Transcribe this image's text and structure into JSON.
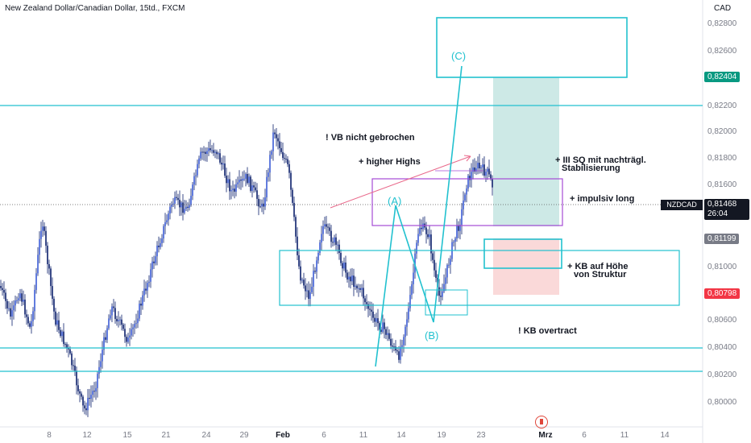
{
  "header": {
    "title": "New Zealand Dollar/Canadian Dollar, 15td., FXCM",
    "currency": "CAD"
  },
  "symbol": {
    "ticker": "NZDCAD",
    "last_price": "0,81468",
    "countdown": "26:04"
  },
  "price_axis": {
    "ticks": [
      "0,82800",
      "0,82600",
      "0,82200",
      "0,82000",
      "0,81800",
      "0,81600",
      "0,81000",
      "0,80600",
      "0,80400",
      "0,80200",
      "0,80000"
    ],
    "badges": [
      {
        "label": "0,82404",
        "color": "#089981"
      },
      {
        "label": "0,81199",
        "color": "#787b86"
      },
      {
        "label": "0,80798",
        "color": "#f23645"
      }
    ]
  },
  "time_axis": {
    "ticks": [
      "8",
      "12",
      "15",
      "21",
      "24",
      "29",
      "Feb",
      "6",
      "11",
      "14",
      "19",
      "23",
      "Mrz",
      "6",
      "11",
      "14"
    ],
    "bold": [
      "Feb",
      "Mrz"
    ]
  },
  "annotations": {
    "vb": "! VB nicht gebrochen",
    "higher_highs": "+ higher Highs",
    "sq_line1": "+ III SQ mit nachträgl.",
    "sq_line2": "Stabilisierung",
    "impulsiv": "+ impulsiv long",
    "kb_line1": "+ KB auf Höhe",
    "kb_line2": "von Struktur",
    "overtract": "! KB overtract"
  },
  "waves": {
    "a": "(A)",
    "b": "(B)",
    "c": "(C)"
  },
  "colors": {
    "candle": "#0b1f6b",
    "levels": "#22c1cf",
    "zone_box": "#a54bd6",
    "profit": "#cde9e6",
    "loss": "#fad9d9",
    "trend": "#e9698b"
  },
  "icons": {
    "event": "canada-flag-icon"
  }
}
